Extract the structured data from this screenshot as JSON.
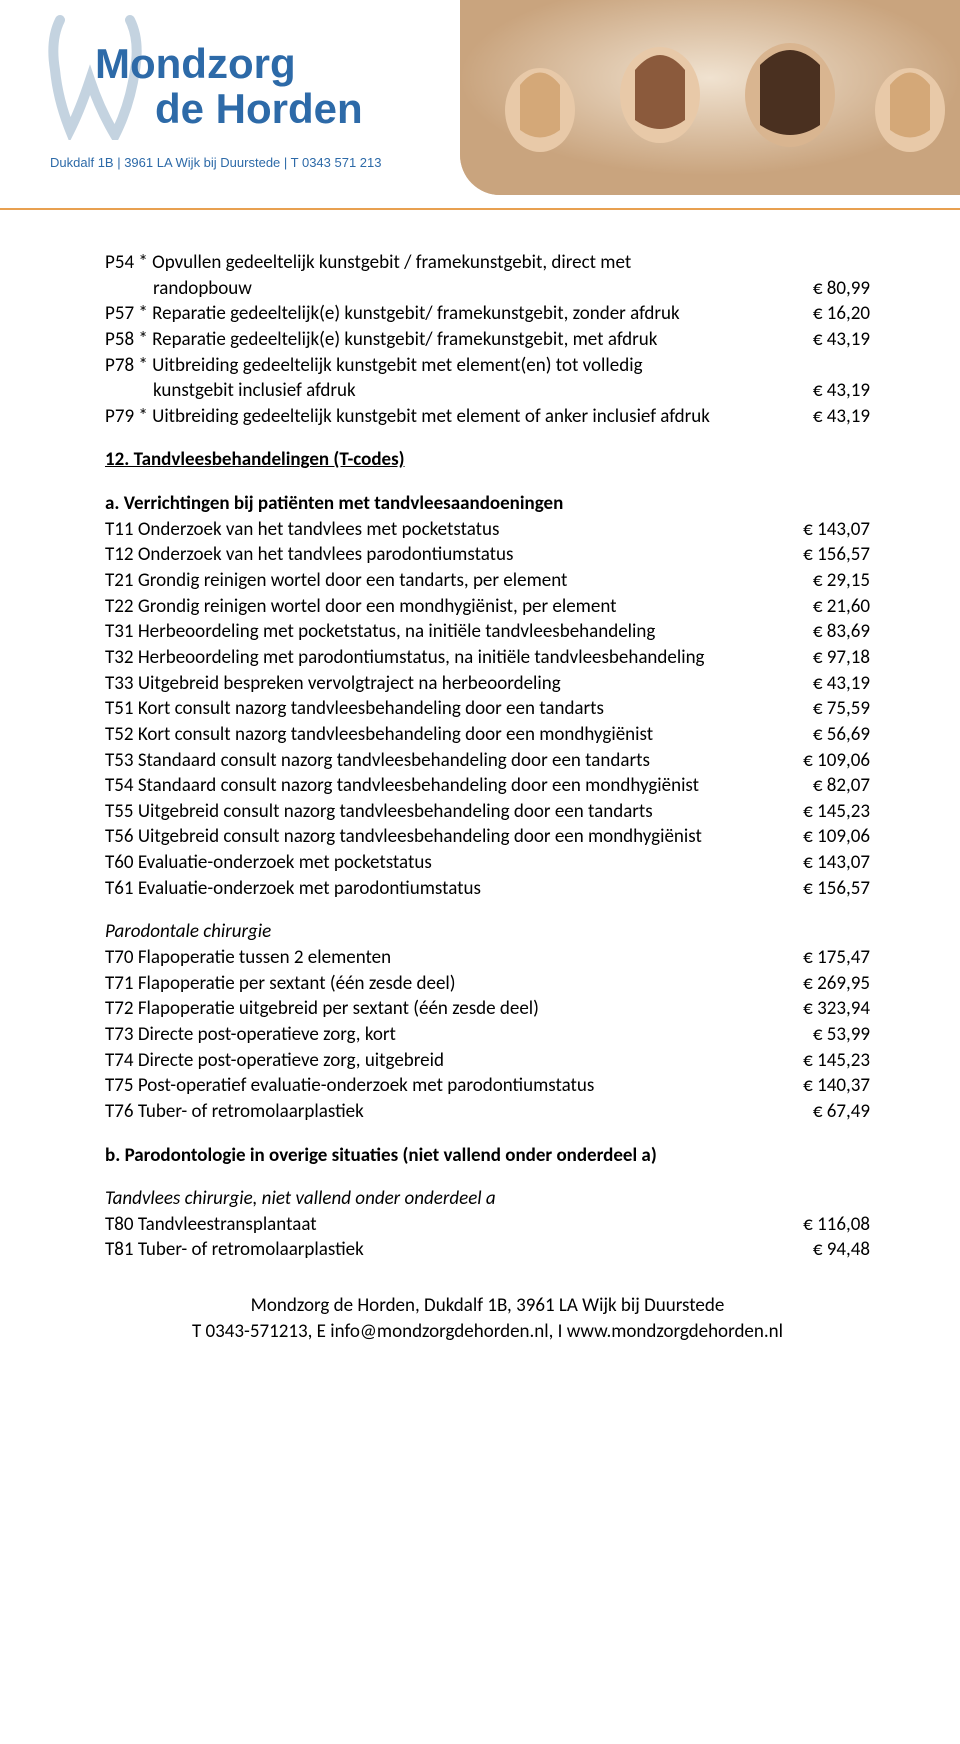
{
  "header": {
    "brand_line1": "Mondzorg",
    "brand_line2": "de Horden",
    "contact": "Dukdalf 1B | 3961 LA Wijk bij Duurstede | T 0343 571 213",
    "brand_color": "#2d6aa8",
    "divider_color": "#e8a050",
    "tooth_stroke": "#c4d3e0"
  },
  "block1": [
    {
      "desc": "P54 * Opvullen gedeeltelijk kunstgebit / framekunstgebit, direct met",
      "cont": "randopbouw",
      "price": "€ 80,99"
    },
    {
      "desc": "P57 * Reparatie gedeeltelijk(e) kunstgebit/ framekunstgebit, zonder afdruk",
      "price": "€ 16,20"
    },
    {
      "desc": "P58 * Reparatie gedeeltelijk(e) kunstgebit/ framekunstgebit, met afdruk",
      "price": "€ 43,19"
    },
    {
      "desc": "P78 * Uitbreiding gedeeltelijk kunstgebit met element(en) tot volledig",
      "cont": "kunstgebit inclusief afdruk",
      "price": "€ 43,19"
    },
    {
      "desc": "P79 * Uitbreiding gedeeltelijk kunstgebit met element of anker inclusief afdruk",
      "price": "€ 43,19"
    }
  ],
  "section12_title": "12. Tandvleesbehandelingen (T-codes)",
  "sub_a_title": "a. Verrichtingen bij patiënten met tandvleesaandoeningen",
  "block_a": [
    {
      "desc": "T11 Onderzoek van het tandvlees met pocketstatus",
      "price": "€ 143,07"
    },
    {
      "desc": "T12 Onderzoek van het tandvlees parodontiumstatus",
      "price": "€ 156,57"
    },
    {
      "desc": "T21 Grondig reinigen wortel door een tandarts, per element",
      "price": "€ 29,15"
    },
    {
      "desc": "T22 Grondig reinigen wortel door een mondhygiënist, per element",
      "price": "€ 21,60"
    },
    {
      "desc": "T31 Herbeoordeling met pocketstatus, na initiële tandvleesbehandeling",
      "price": "€ 83,69"
    },
    {
      "desc": "T32 Herbeoordeling met parodontiumstatus, na initiële tandvleesbehandeling",
      "price": "€ 97,18"
    },
    {
      "desc": "T33 Uitgebreid bespreken vervolgtraject na herbeoordeling",
      "price": "€ 43,19"
    },
    {
      "desc": "T51 Kort consult nazorg tandvleesbehandeling door een tandarts",
      "price": "€ 75,59"
    },
    {
      "desc": "T52 Kort consult nazorg tandvleesbehandeling door een mondhygiënist",
      "price": "€ 56,69"
    },
    {
      "desc": "T53 Standaard consult nazorg tandvleesbehandeling door een tandarts",
      "price": "€ 109,06"
    },
    {
      "desc": "T54 Standaard consult nazorg tandvleesbehandeling door een mondhygiënist",
      "price": "€ 82,07"
    },
    {
      "desc": "T55 Uitgebreid consult nazorg tandvleesbehandeling door een tandarts",
      "price": "€ 145,23"
    },
    {
      "desc": "T56 Uitgebreid consult nazorg tandvleesbehandeling door een mondhygiënist",
      "price": "€ 109,06"
    },
    {
      "desc": "T60 Evaluatie-onderzoek met pocketstatus",
      "price": "€ 143,07"
    },
    {
      "desc": "T61 Evaluatie-onderzoek met parodontiumstatus",
      "price": "€ 156,57"
    }
  ],
  "parodontale_title": "Parodontale chirurgie",
  "block_paro": [
    {
      "desc": "T70 Flapoperatie tussen 2 elementen",
      "price": "€ 175,47"
    },
    {
      "desc": "T71 Flapoperatie per sextant (één zesde deel)",
      "price": "€ 269,95"
    },
    {
      "desc": "T72 Flapoperatie uitgebreid per sextant (één zesde deel)",
      "price": "€ 323,94"
    },
    {
      "desc": "T73 Directe post-operatieve zorg, kort",
      "price": "€ 53,99"
    },
    {
      "desc": "T74 Directe post-operatieve zorg, uitgebreid",
      "price": "€ 145,23"
    },
    {
      "desc": "T75 Post-operatief evaluatie-onderzoek met parodontiumstatus",
      "price": "€ 140,37"
    },
    {
      "desc": "T76 Tuber- of retromolaarplastiek",
      "price": "€ 67,49"
    }
  ],
  "sub_b_title": "b. Parodontologie in overige situaties (niet vallend onder onderdeel a)",
  "tandvlees_title": "Tandvlees chirurgie, niet vallend onder onderdeel a",
  "block_b": [
    {
      "desc": "T80 Tandvleestransplantaat",
      "price": "€ 116,08"
    },
    {
      "desc": "T81 Tuber- of retromolaarplastiek",
      "price": "€ 94,48"
    }
  ],
  "footer": {
    "line1": "Mondzorg de Horden, Dukdalf 1B, 3961 LA Wijk bij Duurstede",
    "line2": "T 0343-571213, E info@mondzorgdehorden.nl, I www.mondzorgdehorden.nl"
  }
}
